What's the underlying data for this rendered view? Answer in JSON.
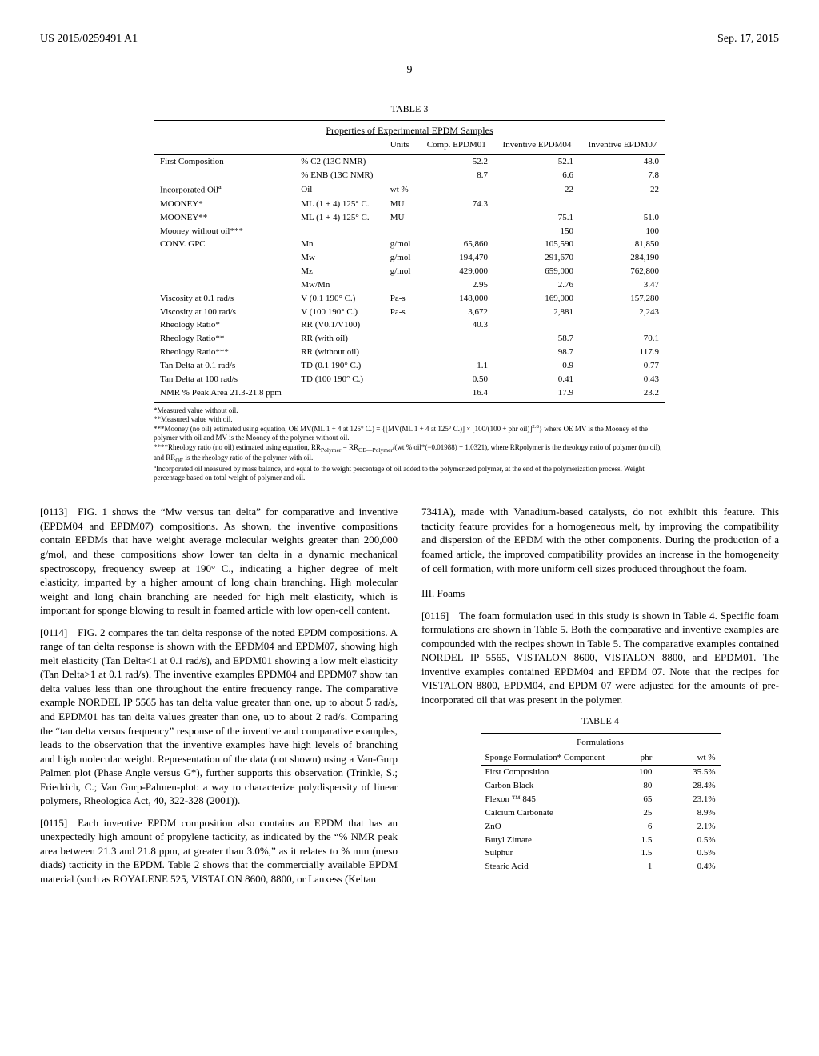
{
  "header": {
    "left": "US 2015/0259491 A1",
    "right": "Sep. 17, 2015"
  },
  "page_number": "9",
  "table3": {
    "caption": "TABLE 3",
    "title": "Properties of Experimental EPDM Samples",
    "columns": [
      "",
      "",
      "Units",
      "Comp. EPDM01",
      "Inventive EPDM04",
      "Inventive EPDM07"
    ],
    "rows": [
      [
        "First Composition",
        "% C2 (13C NMR)",
        "",
        "52.2",
        "52.1",
        "48.0"
      ],
      [
        "",
        "% ENB (13C NMR)",
        "",
        "8.7",
        "6.6",
        "7.8"
      ],
      [
        "Incorporated Oil<sup>a</sup>",
        "Oil",
        "wt %",
        "",
        "22",
        "22"
      ],
      [
        "MOONEY*",
        "ML (1 + 4) 125° C.",
        "MU",
        "74.3",
        "",
        ""
      ],
      [
        "MOONEY**",
        "ML (1 + 4) 125° C.",
        "MU",
        "",
        "75.1",
        "51.0"
      ],
      [
        "Mooney without oil***",
        "",
        "",
        "",
        "150",
        "100"
      ],
      [
        "CONV. GPC",
        "Mn",
        "g/mol",
        "65,860",
        "105,590",
        "81,850"
      ],
      [
        "",
        "Mw",
        "g/mol",
        "194,470",
        "291,670",
        "284,190"
      ],
      [
        "",
        "Mz",
        "g/mol",
        "429,000",
        "659,000",
        "762,800"
      ],
      [
        "",
        "Mw/Mn",
        "",
        "2.95",
        "2.76",
        "3.47"
      ],
      [
        "Viscosity at 0.1 rad/s",
        "V (0.1 190° C.)",
        "Pa-s",
        "148,000",
        "169,000",
        "157,280"
      ],
      [
        "Viscosity at 100 rad/s",
        "V (100 190° C.)",
        "Pa-s",
        "3,672",
        "2,881",
        "2,243"
      ],
      [
        "Rheology Ratio*",
        "RR (V0.1/V100)",
        "",
        "40.3",
        "",
        ""
      ],
      [
        "Rheology Ratio**",
        "RR (with oil)",
        "",
        "",
        "58.7",
        "70.1"
      ],
      [
        "Rheology Ratio***",
        "RR (without oil)",
        "",
        "",
        "98.7",
        "117.9"
      ],
      [
        "Tan Delta at 0.1 rad/s",
        "TD (0.1 190° C.)",
        "",
        "1.1",
        "0.9",
        "0.77"
      ],
      [
        "Tan Delta at 100 rad/s",
        "TD (100 190° C.)",
        "",
        "0.50",
        "0.41",
        "0.43"
      ],
      [
        "NMR % Peak Area 21.3-21.8 ppm",
        "",
        "",
        "16.4",
        "17.9",
        "23.2"
      ]
    ],
    "footnotes": [
      "*Measured value without oil.",
      "**Measured value with oil.",
      "***Mooney (no oil) estimated using equation, OE MV(ML 1 + 4 at 125° C.) = {[MV(ML 1 + 4 at 125° C.)] × [100/(100 + phr oil)]<sup>2.8</sup>} where OE MV is the Mooney of the polymer with oil and MV is the Mooney of the polymer without oil.",
      "****Rheology ratio (no oil) estimated using equation, RR<sub>Polymer</sub> = RR<sub>OE—Polymer</sub>/(wt % oil*(−0.01988) + 1.0321), where RRpolymer is the rheology ratio of polymer (no oil), and RR<sub>OE</sub> is the rheology ratio of the polymer with oil.",
      "<sup>a</sup>Incorporated oil measured by mass balance, and equal to the weight percentage of oil added to the polymerized polymer, at the end of the polymerization process. Weight percentage based on total weight of polymer and oil."
    ]
  },
  "paragraphs": {
    "p0113": "[0113] FIG. 1 shows the “Mw versus tan delta” for comparative and inventive (EPDM04 and EPDM07) compositions. As shown, the inventive compositions contain EPDMs that have weight average molecular weights greater than 200,000 g/mol, and these compositions show lower tan delta in a dynamic mechanical spectroscopy, frequency sweep at 190° C., indicating a higher degree of melt elasticity, imparted by a higher amount of long chain branching. High molecular weight and long chain branching are needed for high melt elasticity, which is important for sponge blowing to result in foamed article with low open-cell content.",
    "p0114": "[0114] FIG. 2 compares the tan delta response of the noted EPDM compositions. A range of tan delta response is shown with the EPDM04 and EPDM07, showing high melt elasticity (Tan Delta<1 at 0.1 rad/s), and EPDM01 showing a low melt elasticity (Tan Delta>1 at 0.1 rad/s). The inventive examples EPDM04 and EPDM07 show tan delta values less than one throughout the entire frequency range. The comparative example NORDEL IP 5565 has tan delta value greater than one, up to about 5 rad/s, and EPDM01 has tan delta values greater than one, up to about 2 rad/s. Comparing the “tan delta versus frequency” response of the inventive and comparative examples, leads to the observation that the inventive examples have high levels of branching and high molecular weight. Representation of the data (not shown) using a Van-Gurp Palmen plot (Phase Angle versus G*), further supports this observation (Trinkle, S.; Friedrich, C.; Van Gurp-Palmen-plot: a way to characterize polydispersity of linear polymers, Rheologica Act, 40, 322-328 (2001)).",
    "p0115a": "[0115] Each inventive EPDM composition also contains an EPDM that has an unexpectedly high amount of propylene tacticity, as indicated by the “% NMR peak area between 21.3 and 21.8 ppm, at greater than 3.0%,” as it relates to % mm (meso diads) tacticity in the EPDM. Table 2 shows that the commercially available EPDM material (such as ROYALENE 525, VISTALON 8600, 8800, or Lanxess (Keltan",
    "p0115b": "7341A), made with Vanadium-based catalysts, do not exhibit this feature. This tacticity feature provides for a homogeneous melt, by improving the compatibility and dispersion of the EPDM with the other components. During the production of a foamed article, the improved compatibility provides an increase in the homogeneity of cell formation, with more uniform cell sizes produced throughout the foam.",
    "section3": "III. Foams",
    "p0116": "[0116] The foam formulation used in this study is shown in Table 4. Specific foam formulations are shown in Table 5. Both the comparative and inventive examples are compounded with the recipes shown in Table 5. The comparative examples contained NORDEL IP 5565, VISTALON 8600, VISTALON 8800, and EPDM01. The inventive examples contained EPDM04 and EPDM 07. Note that the recipes for VISTALON 8800, EPDM04, and EPDM 07 were adjusted for the amounts of pre-incorporated oil that was present in the polymer."
  },
  "table4": {
    "caption": "TABLE 4",
    "title": "Formulations",
    "header": [
      "Sponge Formulation* Component",
      "phr",
      "wt %"
    ],
    "rows": [
      [
        "First Composition",
        "100",
        "35.5%"
      ],
      [
        "Carbon Black",
        "80",
        "28.4%"
      ],
      [
        "Flexon ™ 845",
        "65",
        "23.1%"
      ],
      [
        "Calcium Carbonate",
        "25",
        "8.9%"
      ],
      [
        "ZnO",
        "6",
        "2.1%"
      ],
      [
        "Butyl Zimate",
        "1.5",
        "0.5%"
      ],
      [
        "Sulphur",
        "1.5",
        "0.5%"
      ],
      [
        "Stearic Acid",
        "1",
        "0.4%"
      ]
    ]
  }
}
